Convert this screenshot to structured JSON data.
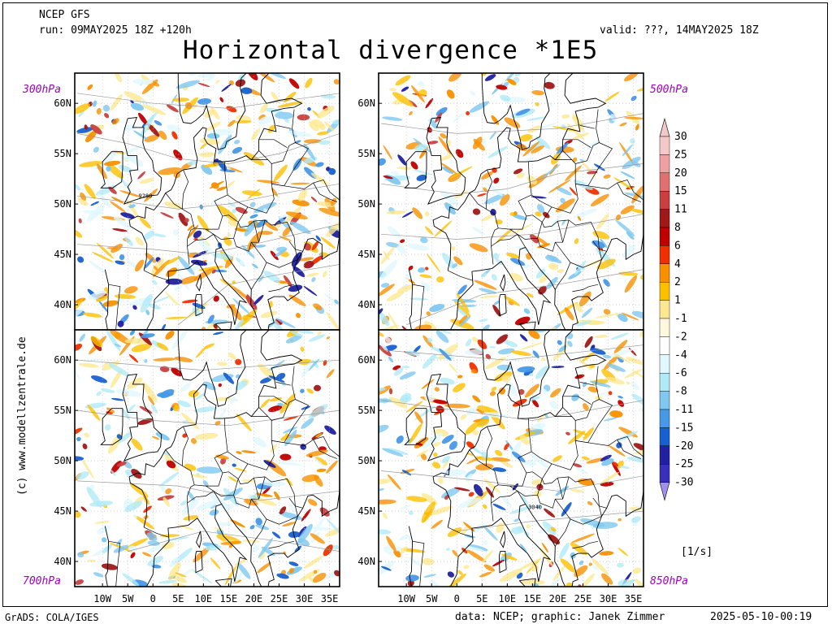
{
  "header": {
    "model": "NCEP GFS",
    "run": "run: 09MAY2025 18Z +120h",
    "valid": "valid: ???, 14MAY2025 18Z",
    "title": "Horizontal divergence *1E5"
  },
  "panels": [
    {
      "level": "300hPa",
      "contour_label": "9280"
    },
    {
      "level": "500hPa",
      "contour_label": ""
    },
    {
      "level": "700hPa",
      "contour_label": "2880"
    },
    {
      "level": "850hPa",
      "contour_label": "3040"
    }
  ],
  "axes": {
    "lat_labels": [
      "60N",
      "55N",
      "50N",
      "45N",
      "40N"
    ],
    "lon_labels": [
      "10W",
      "5W",
      "0",
      "5E",
      "10E",
      "15E",
      "20E",
      "25E",
      "30E",
      "35E"
    ]
  },
  "colorbar": {
    "unit": "[1/s]",
    "levels": [
      {
        "label": "30",
        "color": "#f4c8c8"
      },
      {
        "label": "25",
        "color": "#f0a0a0"
      },
      {
        "label": "20",
        "color": "#e07070"
      },
      {
        "label": "15",
        "color": "#c84040"
      },
      {
        "label": "11",
        "color": "#a01818"
      },
      {
        "label": "8",
        "color": "#c00000"
      },
      {
        "label": "6",
        "color": "#f03000"
      },
      {
        "label": "4",
        "color": "#f89000"
      },
      {
        "label": "2",
        "color": "#fcc000"
      },
      {
        "label": "1",
        "color": "#fde890"
      },
      {
        "label": "-1",
        "color": "#fff8dc"
      },
      {
        "label": "-2",
        "color": "#ffffff"
      },
      {
        "label": "-4",
        "color": "#e0f8ff"
      },
      {
        "label": "-6",
        "color": "#b0eaf8"
      },
      {
        "label": "-8",
        "color": "#80c8f0"
      },
      {
        "label": "-11",
        "color": "#4898e8"
      },
      {
        "label": "-15",
        "color": "#1860d0"
      },
      {
        "label": "-20",
        "color": "#2020a0"
      },
      {
        "label": "-25",
        "color": "#3830b8"
      },
      {
        "label": "-30",
        "color": "#5050d8"
      }
    ],
    "extend_bottom_color": "#a090f0"
  },
  "footer": {
    "grads": "GrADS: COLA/IGES",
    "data": "data: NCEP; graphic: Janek Zimmer",
    "timestamp": "2025-05-10-00:19",
    "side_credit": "(c) www.modellzentrale.de"
  }
}
